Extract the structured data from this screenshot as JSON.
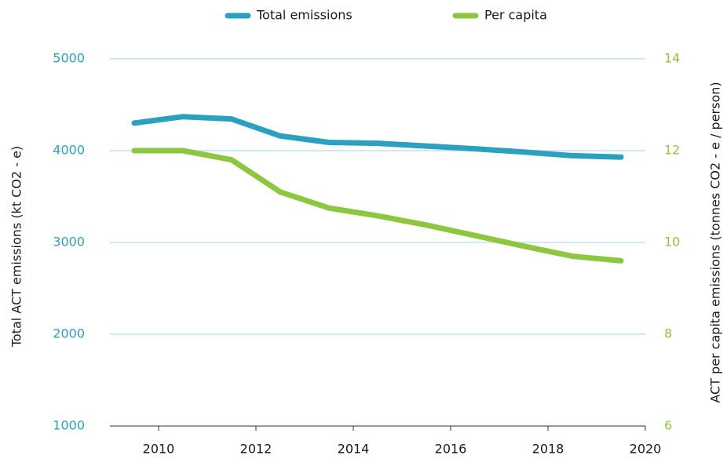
{
  "chart_data": {
    "type": "line",
    "x": [
      2009.5,
      2010.5,
      2011.5,
      2012.5,
      2013.5,
      2014.5,
      2015.5,
      2016.5,
      2017.5,
      2018.5,
      2019.5
    ],
    "series": [
      {
        "name": "Total emissions",
        "color": "#2ba1bf",
        "values": [
          4300,
          4370,
          4345,
          4160,
          4090,
          4080,
          4050,
          4020,
          3985,
          3945,
          3930
        ]
      },
      {
        "name": "Per capita",
        "color": "#8dc63f",
        "axis": "y2",
        "values": [
          12.0,
          12.0,
          11.8,
          11.1,
          10.75,
          10.58,
          10.38,
          10.15,
          9.92,
          9.7,
          9.6
        ]
      }
    ],
    "y_label": "Total ACT emissions (kt CO2 - e)",
    "y2_label": "ACT per capita emissions (tonnes CO2 - e / person)",
    "xlim": [
      2009,
      2020
    ],
    "xticks": [
      2010,
      2012,
      2014,
      2016,
      2018,
      2020
    ],
    "ylim": [
      1000,
      5000
    ],
    "yticks": [
      1000,
      2000,
      3000,
      4000,
      5000
    ],
    "y2lim": [
      6,
      14
    ],
    "y2ticks": [
      6,
      8,
      10,
      12,
      14
    ],
    "grid": true,
    "legend": "top"
  }
}
